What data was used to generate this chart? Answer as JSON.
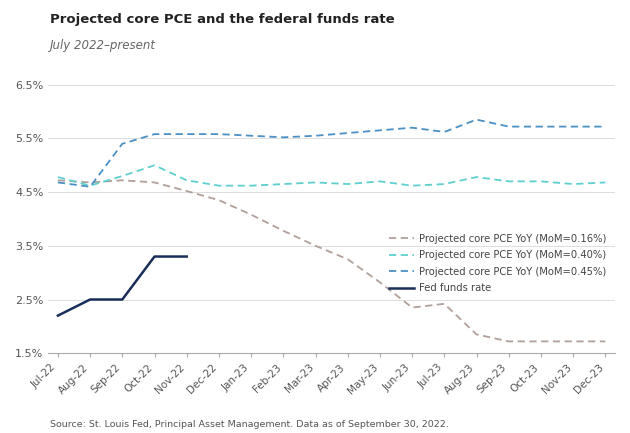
{
  "title": "Projected core PCE and the federal funds rate",
  "subtitle": "July 2022–present",
  "source": "Source: St. Louis Fed, Principal Asset Management. Data as of September 30, 2022.",
  "x_labels": [
    "Jul-22",
    "Aug-22",
    "Sep-22",
    "Oct-22",
    "Nov-22",
    "Dec-22",
    "Jan-23",
    "Feb-23",
    "Mar-23",
    "Apr-23",
    "May-23",
    "Jun-23",
    "Jul-23",
    "Aug-23",
    "Sep-23",
    "Oct-23",
    "Nov-23",
    "Dec-23"
  ],
  "ylim": [
    1.5,
    6.75
  ],
  "yticks": [
    1.5,
    2.5,
    3.5,
    4.5,
    5.5,
    6.5
  ],
  "ytick_labels": [
    "1.5%",
    "2.5%",
    "3.5%",
    "4.5%",
    "5.5%",
    "6.5%"
  ],
  "fed_funds_rate": [
    2.2,
    2.5,
    2.5,
    3.3,
    3.3,
    null,
    null,
    null,
    null,
    null,
    null,
    null,
    null,
    null,
    null,
    null,
    null,
    null
  ],
  "pce_016": [
    4.72,
    4.68,
    4.72,
    4.68,
    4.52,
    4.35,
    4.08,
    3.78,
    3.5,
    3.25,
    2.82,
    2.35,
    2.42,
    1.85,
    1.72,
    1.72,
    1.72,
    1.72
  ],
  "pce_040": [
    4.78,
    4.62,
    4.8,
    5.0,
    4.72,
    4.62,
    4.62,
    4.65,
    4.68,
    4.65,
    4.7,
    4.62,
    4.65,
    4.78,
    4.7,
    4.7,
    4.65,
    4.68
  ],
  "pce_045": [
    4.68,
    4.6,
    5.4,
    5.58,
    5.58,
    5.58,
    5.55,
    5.52,
    5.55,
    5.6,
    5.65,
    5.7,
    5.62,
    5.85,
    5.72,
    5.72,
    5.72,
    5.72
  ],
  "color_016": "#b0a09a",
  "color_040": "#5ecfcf",
  "color_045": "#4a90c4",
  "color_fed": "#1a2e5a",
  "background_color": "#ffffff",
  "legend_labels": [
    "Projected core PCE YoY (MoM=0.16%)",
    "Projected core PCE YoY (MoM=0.40%)",
    "Projected core PCE YoY (MoM=0.45%)",
    "Fed funds rate"
  ]
}
